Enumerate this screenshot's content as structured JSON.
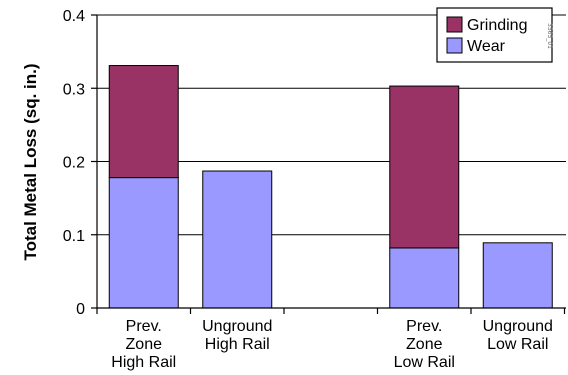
{
  "chart_data": {
    "type": "bar",
    "stacked": true,
    "ylabel": "Total Metal Loss (sq. in.)",
    "xlabel": "",
    "ylim": [
      0,
      0.4
    ],
    "yticks": [
      "0",
      "0.1",
      "0.2",
      "0.3",
      "0.4"
    ],
    "categories": [
      {
        "lines": [
          "Prev.",
          "Zone",
          "High Rail"
        ],
        "slot": 0
      },
      {
        "lines": [
          "Unground",
          "High Rail"
        ],
        "slot": 1
      },
      {
        "lines": [
          "Prev.",
          "Zone",
          "Low Rail"
        ],
        "slot": 3
      },
      {
        "lines": [
          "Unground",
          "Low Rail"
        ],
        "slot": 4
      }
    ],
    "series": [
      {
        "name": "Wear",
        "color": "#9999ff",
        "values": [
          0.178,
          0.187,
          0.082,
          0.089
        ]
      },
      {
        "name": "Grinding",
        "color": "#993366",
        "values": [
          0.153,
          0.0,
          0.221,
          0.0
        ]
      }
    ],
    "grid": true,
    "legend": "top-right",
    "stamp": "3565_01"
  }
}
